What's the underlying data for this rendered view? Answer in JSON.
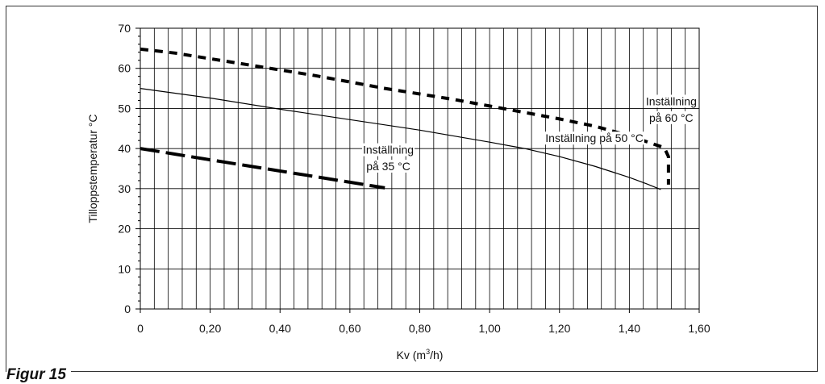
{
  "figure_label": "Figur 15",
  "chart_data": {
    "type": "line",
    "xlabel_main": "Kv (m",
    "xlabel_sup": "3",
    "xlabel_end": "/h)",
    "ylabel": "Tilloppstemperatur °C",
    "xlim": [
      0,
      1.6
    ],
    "ylim": [
      0,
      70
    ],
    "x_ticks": [
      {
        "value": 0,
        "label": "0"
      },
      {
        "value": 0.2,
        "label": "0,20"
      },
      {
        "value": 0.4,
        "label": "0,40"
      },
      {
        "value": 0.6,
        "label": "0,60"
      },
      {
        "value": 0.8,
        "label": "0,80"
      },
      {
        "value": 1.0,
        "label": "1,00"
      },
      {
        "value": 1.2,
        "label": "1,20"
      },
      {
        "value": 1.4,
        "label": "1,40"
      },
      {
        "value": 1.6,
        "label": "1,60"
      }
    ],
    "y_ticks": [
      {
        "value": 0,
        "label": "0"
      },
      {
        "value": 10,
        "label": "10"
      },
      {
        "value": 20,
        "label": "20"
      },
      {
        "value": 30,
        "label": "30"
      },
      {
        "value": 40,
        "label": "40"
      },
      {
        "value": 50,
        "label": "50"
      },
      {
        "value": 60,
        "label": "60"
      },
      {
        "value": 70,
        "label": "70"
      }
    ],
    "minor_x_step": 0.04,
    "grid": true,
    "series": [
      {
        "style": "dashed-short",
        "points": [
          [
            0,
            64.8
          ],
          [
            0.1,
            63.8
          ],
          [
            0.2,
            62.4
          ],
          [
            0.3,
            61.0
          ],
          [
            0.4,
            59.6
          ],
          [
            0.5,
            58.2
          ],
          [
            0.6,
            56.6
          ],
          [
            0.7,
            55.0
          ],
          [
            0.8,
            53.6
          ],
          [
            0.9,
            52.2
          ],
          [
            1.0,
            50.6
          ],
          [
            1.1,
            49.0
          ],
          [
            1.2,
            47.4
          ],
          [
            1.3,
            45.6
          ],
          [
            1.4,
            43.2
          ],
          [
            1.46,
            41.4
          ],
          [
            1.5,
            40.2
          ],
          [
            1.512,
            38.0
          ],
          [
            1.512,
            31.0
          ]
        ]
      },
      {
        "style": "solid",
        "points": [
          [
            0,
            55.0
          ],
          [
            0.2,
            52.6
          ],
          [
            0.4,
            49.8
          ],
          [
            0.6,
            47.2
          ],
          [
            0.8,
            44.6
          ],
          [
            1.0,
            41.6
          ],
          [
            1.1,
            40.0
          ],
          [
            1.2,
            38.0
          ],
          [
            1.3,
            35.6
          ],
          [
            1.4,
            32.8
          ],
          [
            1.45,
            31.2
          ],
          [
            1.49,
            29.8
          ]
        ]
      },
      {
        "style": "dashed-long",
        "points": [
          [
            0,
            40.0
          ],
          [
            0.1,
            38.6
          ],
          [
            0.2,
            37.2
          ],
          [
            0.3,
            35.8
          ],
          [
            0.4,
            34.4
          ],
          [
            0.5,
            33.0
          ],
          [
            0.6,
            31.6
          ],
          [
            0.7,
            30.2
          ]
        ]
      }
    ],
    "annotations": [
      {
        "id": "inst35-line1",
        "text": "Inställning",
        "x": 0.71,
        "y": 38.7
      },
      {
        "id": "inst35-line2",
        "text": "på 35 °C",
        "x": 0.71,
        "y": 34.6
      },
      {
        "id": "inst50",
        "text": "Inställning på 50 °C",
        "x": 1.3,
        "y": 41.6
      },
      {
        "id": "inst60-line1",
        "text": "Inställning",
        "x": 1.52,
        "y": 50.8
      },
      {
        "id": "inst60-line2",
        "text": "på 60 °C",
        "x": 1.52,
        "y": 46.7
      }
    ]
  }
}
